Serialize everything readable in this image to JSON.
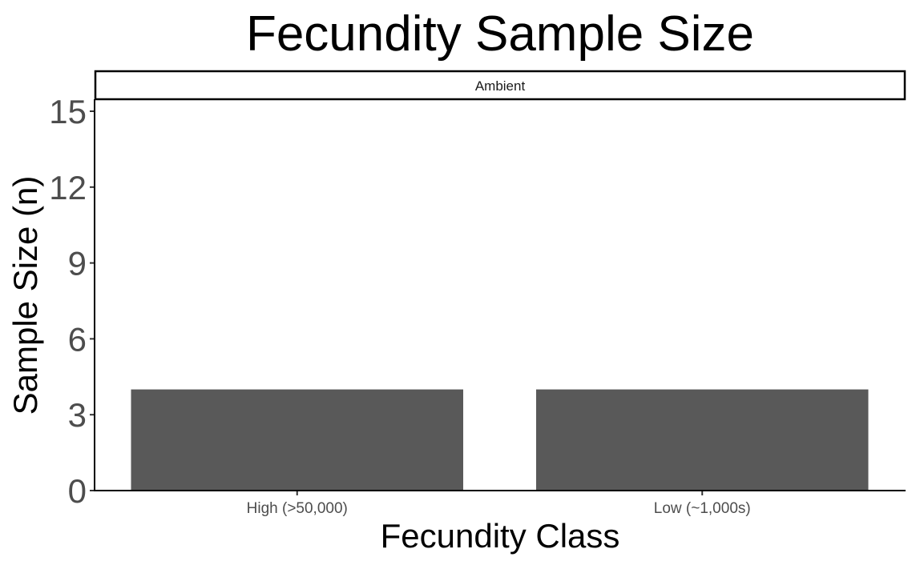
{
  "chart_data": {
    "type": "bar",
    "title": "Fecundity Sample Size",
    "facet": "Ambient",
    "xlabel": "Fecundity Class",
    "ylabel": "Sample Size (n)",
    "categories": [
      "High (>50,000)",
      "Low (~1,000s)"
    ],
    "values": [
      4,
      4
    ],
    "ylim": [
      0,
      15.6
    ],
    "yticks": [
      0,
      3,
      6,
      9,
      12,
      15
    ],
    "grid": false,
    "bar_color": "#595959"
  }
}
